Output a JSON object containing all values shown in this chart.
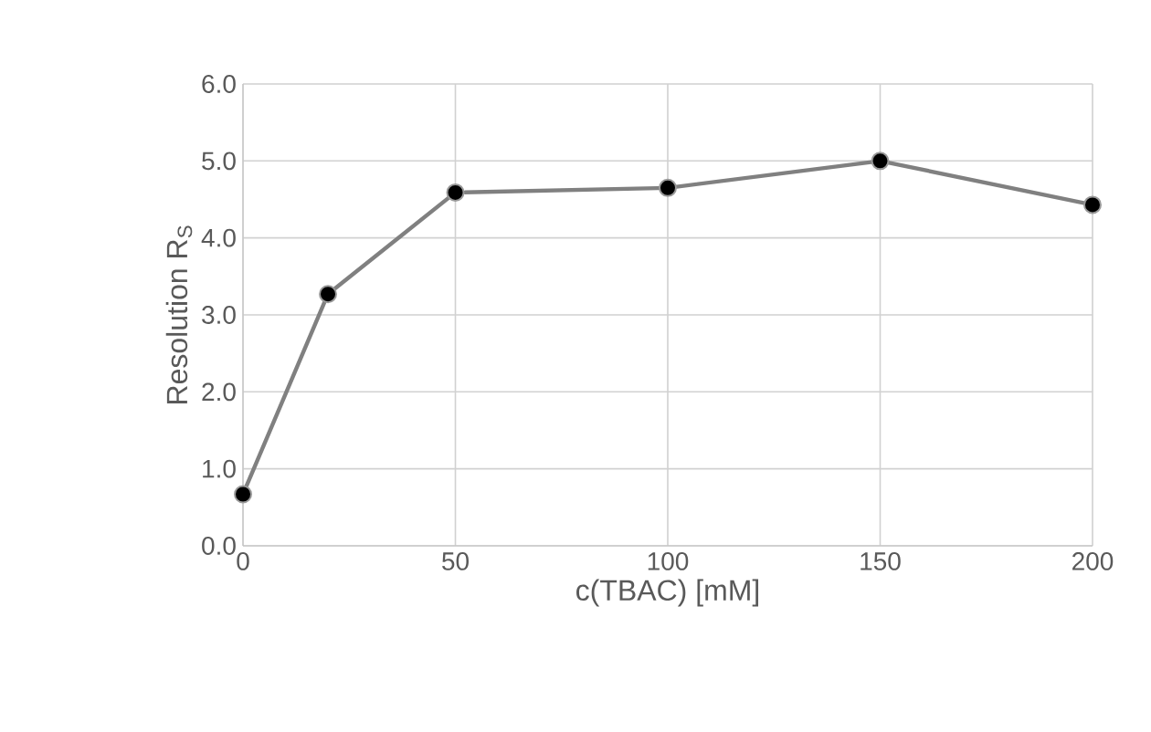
{
  "chart_data": {
    "type": "line",
    "xlabel": "c(TBAC) [mM]",
    "ylabel": "Resolution R$_{S}$",
    "x": [
      0,
      20,
      50,
      100,
      150,
      200
    ],
    "series": [
      {
        "color": "#808080",
        "values": [
          0.67,
          3.27,
          4.59,
          4.65,
          5.0,
          4.43
        ]
      }
    ],
    "xlim": [
      0,
      200
    ],
    "xticks": [
      0,
      50,
      100,
      150,
      200
    ],
    "ylim": [
      0,
      6
    ],
    "yticks": [
      {
        "value": 0,
        "label": "0.0"
      },
      {
        "value": 1,
        "label": "1.0"
      },
      {
        "value": 2,
        "label": "2.0"
      },
      {
        "value": 3,
        "label": "3.0"
      },
      {
        "value": 4,
        "label": "4.0"
      },
      {
        "value": 5,
        "label": "5.0"
      },
      {
        "value": 6,
        "label": "6.0"
      }
    ],
    "grid": true,
    "marker": "circle",
    "line_style": "solid"
  }
}
